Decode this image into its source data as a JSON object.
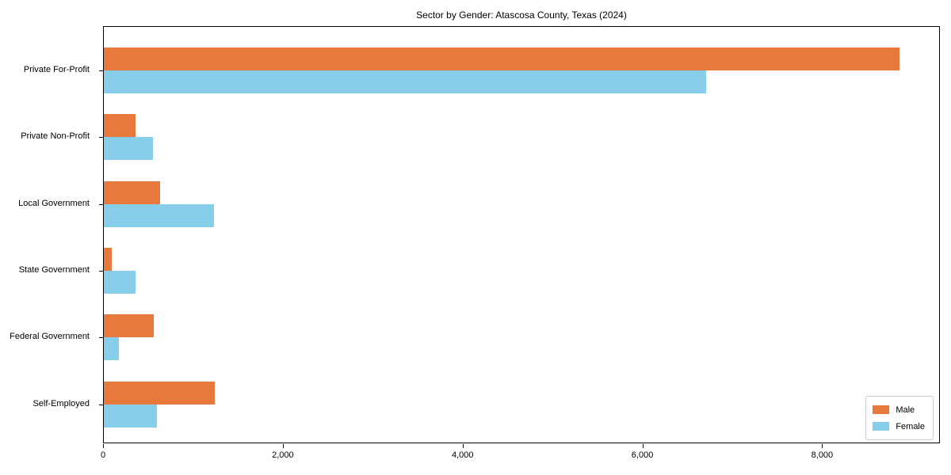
{
  "chart_data": {
    "type": "bar",
    "orientation": "horizontal",
    "title": "Sector by Gender: Atascosa County, Texas (2024)",
    "categories": [
      "Private For-Profit",
      "Private Non-Profit",
      "Local Government",
      "State Government",
      "Federal Government",
      "Self-Employed"
    ],
    "series": [
      {
        "name": "Male",
        "color": "#e8793c",
        "values": [
          8870,
          350,
          630,
          90,
          560,
          1240
        ]
      },
      {
        "name": "Female",
        "color": "#87ceeb",
        "values": [
          6710,
          550,
          1230,
          350,
          165,
          590
        ]
      }
    ],
    "xlabel": "",
    "ylabel": "",
    "xlim": [
      0,
      9310
    ],
    "xticks": {
      "values": [
        0,
        2000,
        4000,
        6000,
        8000
      ],
      "labels": [
        "0",
        "2,000",
        "4,000",
        "6,000",
        "8,000"
      ]
    },
    "grid": false,
    "legend": {
      "position": "lower right",
      "entries": [
        "Male",
        "Female"
      ]
    },
    "colors": {
      "spine": "#000000",
      "legend_border": "#cccccc",
      "background": "#ffffff"
    }
  }
}
